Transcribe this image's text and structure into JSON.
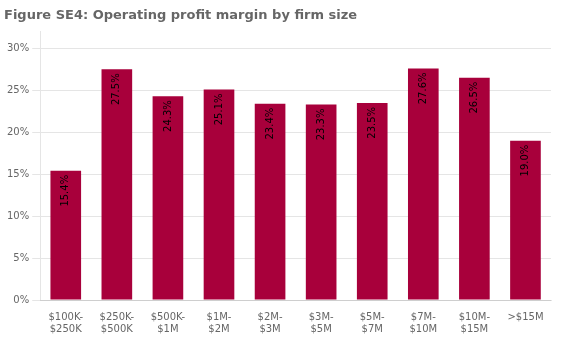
{
  "chart_data": {
    "type": "bar",
    "title": "Figure SE4: Operating profit margin by firm size",
    "categories": [
      "$100K-\n$250K",
      "$250K-\n$500K",
      "$500K-\n$1M",
      "$1M-\n$2M",
      "$2M-\n$3M",
      "$3M-\n$5M",
      "$5M-\n$7M",
      "$7M-\n$10M",
      "$10M-\n$15M",
      ">$15M"
    ],
    "values": [
      15.4,
      27.5,
      24.3,
      25.1,
      23.4,
      23.3,
      23.5,
      27.6,
      26.5,
      19.0
    ],
    "value_labels": [
      "15.4%",
      "27.5%",
      "24.3%",
      "25.1%",
      "23.4%",
      "23.3%",
      "23.5%",
      "27.6%",
      "26.5%",
      "19.0%"
    ],
    "data_labels": true,
    "color": "#A8003B",
    "ylim": [
      0,
      32
    ],
    "yticks": [
      {
        "value": 0,
        "label": "0%"
      },
      {
        "value": 5,
        "label": "5%"
      },
      {
        "value": 10,
        "label": "10%"
      },
      {
        "value": 15,
        "label": "15%"
      },
      {
        "value": 20,
        "label": "20%"
      },
      {
        "value": 25,
        "label": "25%"
      },
      {
        "value": 30,
        "label": "30%"
      }
    ],
    "grid": true
  }
}
